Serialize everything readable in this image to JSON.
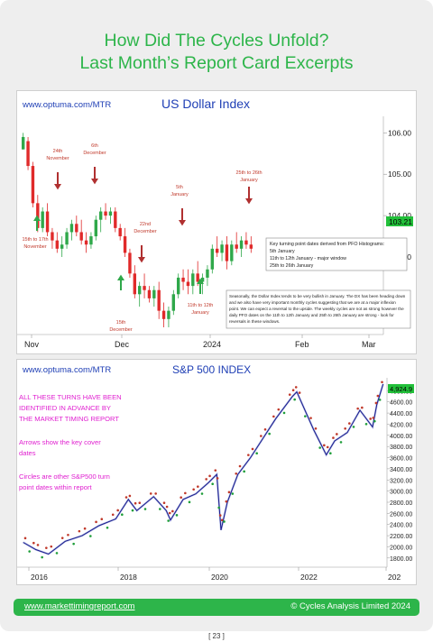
{
  "header": {
    "line1": "How Did The Cycles Unfold?",
    "line2": "Last Month’s Report Card Excerpts"
  },
  "chart_data": [
    {
      "type": "candlestick",
      "source": "www.optuma.com/MTR",
      "title": "US Dollar Index",
      "x_tick_labels": [
        "Nov",
        "Dec",
        "2024",
        "Feb",
        "Mar"
      ],
      "y_tick_labels": [
        "106.00",
        "105.00",
        "104.00",
        "103.00"
      ],
      "y_tick_values": [
        106,
        105,
        104,
        103
      ],
      "ylim": [
        101.3,
        106.4
      ],
      "last_price": "103.21",
      "up_color": "#2fa84a",
      "down_color": "#e02a2a",
      "candles": [
        [
          105.6,
          106.0,
          105.6,
          105.9
        ],
        [
          105.8,
          105.9,
          105.1,
          105.2
        ],
        [
          105.2,
          105.3,
          104.2,
          104.3
        ],
        [
          104.3,
          104.5,
          103.6,
          103.7
        ],
        [
          103.7,
          104.2,
          103.6,
          104.1
        ],
        [
          104.1,
          104.3,
          103.5,
          103.6
        ],
        [
          103.6,
          103.7,
          103.2,
          103.4
        ],
        [
          103.4,
          103.6,
          103.1,
          103.2
        ],
        [
          103.2,
          103.5,
          103.0,
          103.3
        ],
        [
          103.3,
          103.7,
          103.2,
          103.6
        ],
        [
          103.6,
          103.9,
          103.4,
          103.8
        ],
        [
          103.8,
          104.0,
          103.5,
          103.6
        ],
        [
          103.6,
          103.9,
          103.3,
          103.4
        ],
        [
          103.4,
          103.6,
          103.1,
          103.3
        ],
        [
          103.3,
          103.6,
          103.2,
          103.5
        ],
        [
          103.5,
          104.0,
          103.4,
          103.9
        ],
        [
          103.9,
          104.2,
          103.6,
          104.1
        ],
        [
          104.1,
          104.3,
          103.9,
          104.0
        ],
        [
          104.0,
          104.2,
          103.8,
          104.1
        ],
        [
          104.1,
          104.2,
          103.6,
          103.7
        ],
        [
          103.7,
          103.8,
          103.4,
          103.5
        ],
        [
          103.5,
          103.7,
          103.0,
          103.1
        ],
        [
          103.1,
          103.2,
          102.5,
          102.6
        ],
        [
          102.6,
          102.8,
          102.0,
          102.1
        ],
        [
          102.1,
          102.4,
          101.8,
          102.3
        ],
        [
          102.3,
          102.6,
          102.0,
          102.2
        ],
        [
          102.2,
          102.3,
          101.9,
          102.0
        ],
        [
          102.0,
          102.3,
          101.8,
          102.2
        ],
        [
          102.2,
          102.4,
          101.5,
          101.7
        ],
        [
          101.7,
          101.9,
          101.3,
          101.5
        ],
        [
          101.5,
          101.8,
          101.3,
          101.7
        ],
        [
          101.7,
          102.2,
          101.6,
          102.1
        ],
        [
          102.1,
          102.6,
          102.0,
          102.5
        ],
        [
          102.5,
          102.7,
          102.2,
          102.4
        ],
        [
          102.4,
          102.7,
          102.1,
          102.3
        ],
        [
          102.3,
          102.7,
          102.1,
          102.6
        ],
        [
          102.6,
          102.9,
          102.3,
          102.4
        ],
        [
          102.4,
          102.6,
          102.1,
          102.5
        ],
        [
          102.5,
          102.8,
          102.3,
          102.7
        ],
        [
          102.7,
          103.3,
          102.6,
          103.2
        ],
        [
          103.2,
          103.5,
          103.0,
          103.1
        ],
        [
          103.1,
          103.4,
          102.9,
          103.3
        ],
        [
          103.3,
          103.5,
          102.7,
          102.9
        ],
        [
          102.9,
          103.4,
          102.8,
          103.3
        ],
        [
          103.3,
          103.6,
          103.1,
          103.2
        ],
        [
          103.2,
          103.5,
          103.0,
          103.4
        ],
        [
          103.4,
          103.6,
          103.2,
          103.3
        ],
        [
          103.3,
          103.5,
          103.1,
          103.2
        ]
      ],
      "annotations": [
        {
          "text": [
            "24th",
            "November"
          ],
          "kind": "down-arrow"
        },
        {
          "text": [
            "6th",
            "December"
          ],
          "kind": "down-arrow"
        },
        {
          "text": [
            "5th",
            "January"
          ],
          "kind": "down-arrow"
        },
        {
          "text": [
            "22nd",
            "December"
          ],
          "kind": "down-arrow"
        },
        {
          "text": [
            "25th to 26th",
            "January"
          ],
          "kind": "down-arrow"
        },
        {
          "text": [
            "15th to 17th",
            "November"
          ],
          "kind": "up-arrow"
        },
        {
          "text": [
            "15th",
            "December"
          ],
          "kind": "up-arrow"
        },
        {
          "text": [
            "11th to 12th",
            "January"
          ],
          "kind": "up-arrow"
        }
      ],
      "notes": {
        "box1": [
          "Key turning point dates derived from PFO Histograms:",
          "5th January",
          "11th to 12th January - major window",
          "25th to 26th January"
        ],
        "box2": [
          "Seasonally, the Dollar Index tends to be very bullish in January. The DX has been heading down",
          "and we also have very important monthly cycles suggesting that we are at a major inflexion",
          "point. We can expect a reversal to the upside. The weekly cycles are not as strong however the",
          "daily PFO dates on the 11th to 12th January and 25th to 26th January are strong - look for",
          "reversals in these windows."
        ]
      }
    },
    {
      "type": "line",
      "source": "www.optuma.com/MTR",
      "title": "S&P 500 INDEX",
      "x_tick_labels": [
        "2016",
        "2018",
        "2020",
        "2022",
        "202"
      ],
      "y_tick_labels": [
        "4800.00",
        "4600.00",
        "4400.00",
        "4200.00",
        "4000.00",
        "3800.00",
        "3600.00",
        "3400.00",
        "3200.00",
        "3000.00",
        "2800.00",
        "2600.00",
        "2400.00",
        "2200.00",
        "2000.00",
        "1800.00"
      ],
      "y_tick_values": [
        4800,
        4600,
        4400,
        4200,
        4000,
        3800,
        3600,
        3400,
        3200,
        3000,
        2800,
        2600,
        2400,
        2200,
        2000,
        1800
      ],
      "ylim": [
        1700,
        5000
      ],
      "last_price": "4,924.9",
      "x": [
        2015.5,
        2015.8,
        2016.1,
        2016.5,
        2016.9,
        2017.3,
        2017.7,
        2018.0,
        2018.2,
        2018.6,
        2018.9,
        2019.0,
        2019.3,
        2019.6,
        2019.9,
        2020.1,
        2020.2,
        2020.35,
        2020.6,
        2020.9,
        2021.2,
        2021.5,
        2021.9,
        2022.0,
        2022.4,
        2022.7,
        2022.9,
        2023.2,
        2023.5,
        2023.8,
        2023.9,
        2024.05
      ],
      "y": [
        2080,
        1950,
        1870,
        2100,
        2200,
        2380,
        2500,
        2850,
        2650,
        2900,
        2650,
        2480,
        2850,
        2950,
        3150,
        3300,
        2300,
        2800,
        3300,
        3600,
        3950,
        4300,
        4700,
        4780,
        4100,
        3650,
        3900,
        4050,
        4450,
        4150,
        4550,
        4920
      ],
      "line_color": "#1a1a8c",
      "side_notes": [
        "ALL THESE TURNS HAVE BEEN",
        "IDENTIFIED IN ADVANCE BY",
        "THE MARKET TIMING REPORT",
        "",
        "Arrows show the key cover",
        "dates",
        "",
        "Circles are other S&P500 turn",
        "point dates within report"
      ]
    }
  ],
  "footer": {
    "link": "www.markettimingreport.com",
    "copyright": "© Cycles Analysis Limited 2024"
  },
  "page_number": "[ 23 ]",
  "colors": {
    "green": "#2db54a",
    "title_blue": "#1f3fb5",
    "note_magenta": "#e020d0",
    "annotation_red": "#c0392b"
  }
}
